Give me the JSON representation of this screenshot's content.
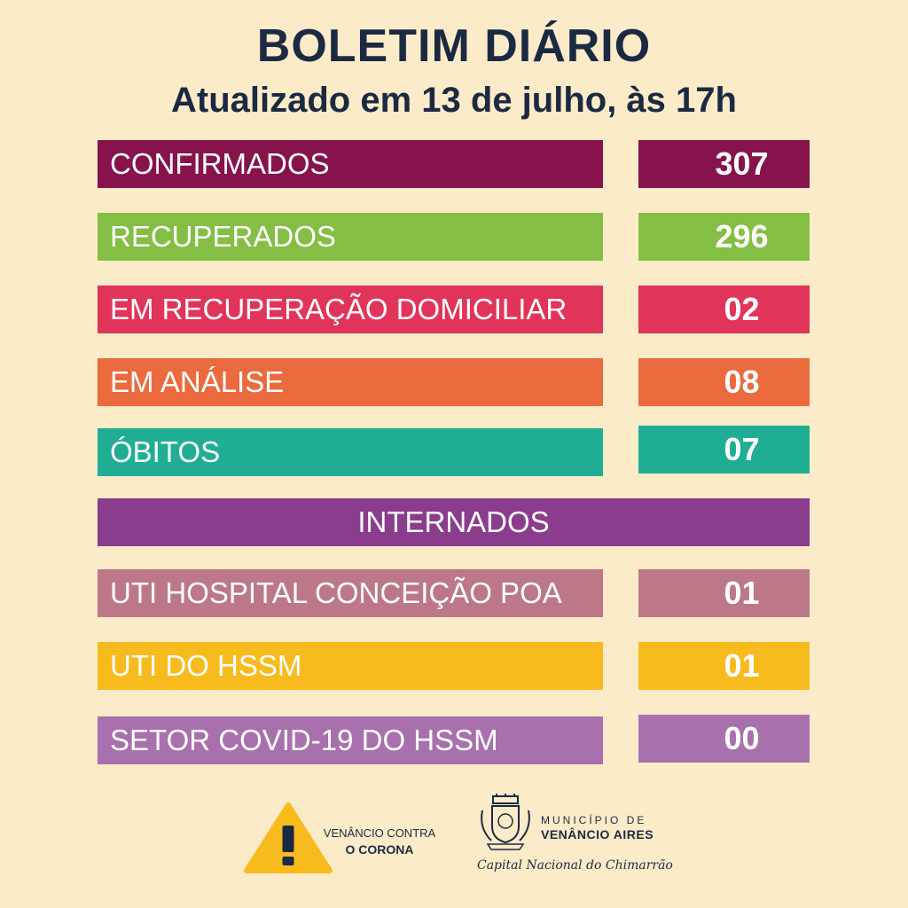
{
  "header": {
    "title": "BOLETIM DIÁRIO",
    "subtitle": "Atualizado em 13 de julho, às 17h"
  },
  "stats": [
    {
      "label": "CONFIRMADOS",
      "value": "307",
      "color": "#86134c"
    },
    {
      "label": "RECUPERADOS",
      "value": "296",
      "color": "#84be45"
    },
    {
      "label": "EM RECUPERAÇÃO DOMICILIAR",
      "value": "02",
      "color": "#e1345a"
    },
    {
      "label": "EM ANÁLISE",
      "value": "08",
      "color": "#eb6a3e"
    },
    {
      "label": "ÓBITOS",
      "value": "07",
      "color": "#1fae93"
    }
  ],
  "internados": {
    "title": "INTERNADOS",
    "color": "#8a3c8d",
    "items": [
      {
        "label": "UTI HOSPITAL CONCEIÇÃO POA",
        "value": "01",
        "color": "#bc7887"
      },
      {
        "label": "UTI DO HSSM",
        "value": "01",
        "color": "#f8bb1e"
      },
      {
        "label": "SETOR COVID-19 DO HSSM",
        "value": "00",
        "color": "#a870ad"
      }
    ]
  },
  "footer": {
    "campaign_line1": "VENÂNCIO CONTRA",
    "campaign_line2": "O CORONA",
    "warning_icon": "warning-triangle-icon",
    "warning_color": "#f8bb1e",
    "municipality_top": "MUNICÍPIO DE",
    "municipality_name": "VENÂNCIO AIRES",
    "crest_icon": "municipal-crest-icon",
    "tagline": "Capital Nacional do Chimarrão"
  }
}
